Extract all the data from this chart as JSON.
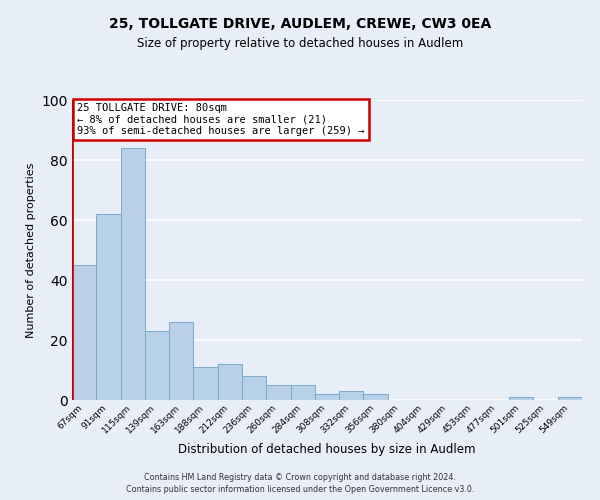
{
  "title": "25, TOLLGATE DRIVE, AUDLEM, CREWE, CW3 0EA",
  "subtitle": "Size of property relative to detached houses in Audlem",
  "xlabel": "Distribution of detached houses by size in Audlem",
  "ylabel": "Number of detached properties",
  "categories": [
    "67sqm",
    "91sqm",
    "115sqm",
    "139sqm",
    "163sqm",
    "188sqm",
    "212sqm",
    "236sqm",
    "260sqm",
    "284sqm",
    "308sqm",
    "332sqm",
    "356sqm",
    "380sqm",
    "404sqm",
    "429sqm",
    "453sqm",
    "477sqm",
    "501sqm",
    "525sqm",
    "549sqm"
  ],
  "values": [
    45,
    62,
    84,
    23,
    26,
    11,
    12,
    8,
    5,
    5,
    2,
    3,
    2,
    0,
    0,
    0,
    0,
    0,
    1,
    0,
    1
  ],
  "bar_color": "#b8d0e8",
  "bar_edge_color": "#7aaaca",
  "annotation_title": "25 TOLLGATE DRIVE: 80sqm",
  "annotation_line2": "← 8% of detached houses are smaller (21)",
  "annotation_line3": "93% of semi-detached houses are larger (259) →",
  "annotation_box_color": "#ffffff",
  "annotation_box_edge": "#cc0000",
  "vline_color": "#cc0000",
  "ylim": [
    0,
    100
  ],
  "yticks": [
    0,
    20,
    40,
    60,
    80,
    100
  ],
  "background_color": "#e8eef8",
  "grid_color": "#ffffff",
  "footer_line1": "Contains HM Land Registry data © Crown copyright and database right 2024.",
  "footer_line2": "Contains public sector information licensed under the Open Government Licence v3.0."
}
